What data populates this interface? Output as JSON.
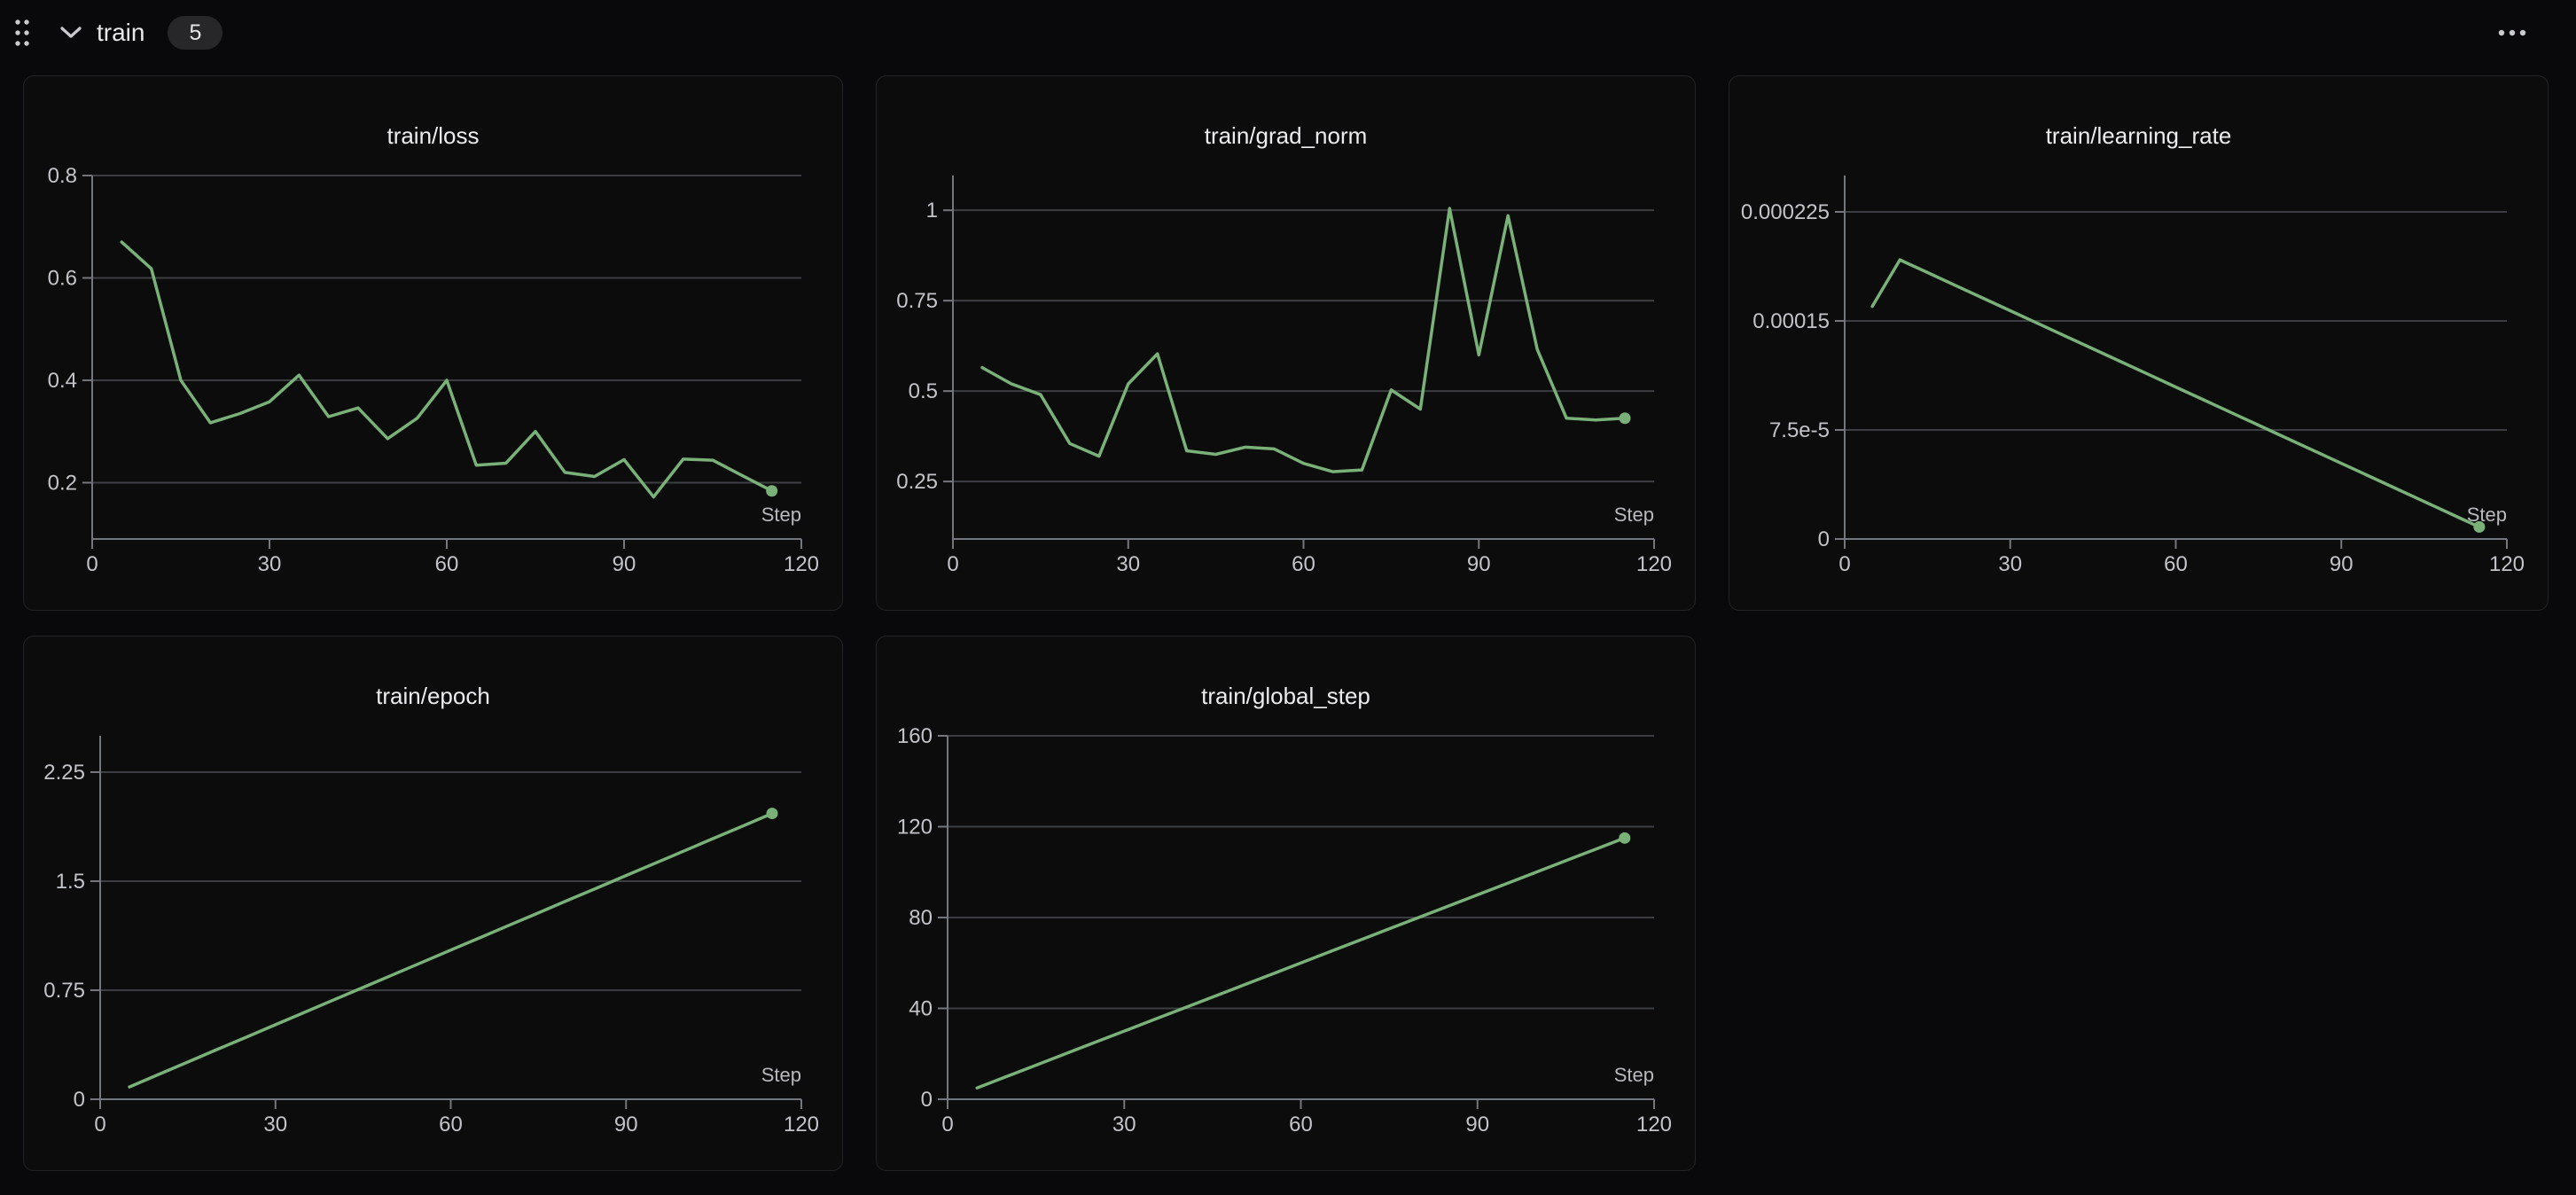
{
  "header": {
    "grip_icon": "drag-handle",
    "collapse_icon": "chevron-down",
    "title": "train",
    "panel_count": "5",
    "menu_icon": "ellipsis"
  },
  "colors": {
    "page_bg": "#09090b",
    "panel_bg": "#0c0c0d",
    "panel_border": "#232327",
    "grid": "#3c3e41",
    "axis": "#73767b",
    "tick_label": "#c2c4c8",
    "title": "#ececee",
    "step_label": "#b7b9bd",
    "accent_line": "#79b179",
    "icon": "#c9cacd",
    "header_text": "#e8e8ea",
    "badge_bg": "#27272a",
    "badge_text": "#e6e6e8"
  },
  "chart_data": [
    {
      "type": "line",
      "title": "train/loss",
      "xlabel": "Step",
      "xlim": [
        0,
        120
      ],
      "xticks": [
        {
          "v": 0,
          "label": "0"
        },
        {
          "v": 30,
          "label": "30"
        },
        {
          "v": 60,
          "label": "60"
        },
        {
          "v": 90,
          "label": "90"
        },
        {
          "v": 120,
          "label": "120"
        }
      ],
      "ylim": [
        0.09,
        0.8
      ],
      "yticks": [
        {
          "v": 0.8,
          "label": "0.8"
        },
        {
          "v": 0.6,
          "label": "0.6"
        },
        {
          "v": 0.4,
          "label": "0.4"
        },
        {
          "v": 0.2,
          "label": "0.2"
        }
      ],
      "x": [
        5,
        10,
        15,
        20,
        25,
        30,
        35,
        40,
        45,
        50,
        55,
        60,
        65,
        70,
        75,
        80,
        85,
        90,
        95,
        100,
        105,
        110,
        115
      ],
      "y": [
        0.67,
        0.618,
        0.4,
        0.317,
        0.335,
        0.358,
        0.41,
        0.329,
        0.346,
        0.286,
        0.326,
        0.4,
        0.234,
        0.238,
        0.3,
        0.22,
        0.212,
        0.245,
        0.172,
        0.246,
        0.244,
        0.214,
        0.184
      ],
      "grid": true,
      "legend": "none",
      "end_marker": true
    },
    {
      "type": "line",
      "title": "train/grad_norm",
      "xlabel": "Step",
      "xlim": [
        0,
        120
      ],
      "xticks": [
        {
          "v": 0,
          "label": "0"
        },
        {
          "v": 30,
          "label": "30"
        },
        {
          "v": 60,
          "label": "60"
        },
        {
          "v": 90,
          "label": "90"
        },
        {
          "v": 120,
          "label": "120"
        }
      ],
      "ylim": [
        0.091,
        1.096
      ],
      "yticks": [
        {
          "v": 1,
          "label": "1"
        },
        {
          "v": 0.75,
          "label": "0.75"
        },
        {
          "v": 0.5,
          "label": "0.5"
        },
        {
          "v": 0.25,
          "label": "0.25"
        }
      ],
      "x": [
        5,
        10,
        15,
        20,
        25,
        30,
        35,
        40,
        45,
        50,
        55,
        60,
        65,
        70,
        75,
        80,
        85,
        90,
        95,
        100,
        105,
        110,
        115
      ],
      "y": [
        0.565,
        0.52,
        0.49,
        0.355,
        0.32,
        0.52,
        0.603,
        0.335,
        0.325,
        0.345,
        0.34,
        0.3,
        0.277,
        0.282,
        0.503,
        0.45,
        1.005,
        0.6,
        0.985,
        0.615,
        0.425,
        0.42,
        0.425
      ],
      "grid": true,
      "legend": "none",
      "end_marker": true
    },
    {
      "type": "line",
      "title": "train/learning_rate",
      "xlabel": "Step",
      "xlim": [
        0,
        120
      ],
      "xticks": [
        {
          "v": 0,
          "label": "0"
        },
        {
          "v": 30,
          "label": "30"
        },
        {
          "v": 60,
          "label": "60"
        },
        {
          "v": 90,
          "label": "90"
        },
        {
          "v": 120,
          "label": "120"
        }
      ],
      "ylim": [
        0,
        0.00025
      ],
      "yticks": [
        {
          "v": 0.000225,
          "label": "0.000225"
        },
        {
          "v": 0.00015,
          "label": "0.00015"
        },
        {
          "v": 7.5e-05,
          "label": "7.5e-5"
        },
        {
          "v": 0,
          "label": "0"
        }
      ],
      "x": [
        5,
        10,
        15,
        20,
        25,
        30,
        35,
        40,
        45,
        50,
        55,
        60,
        65,
        70,
        75,
        80,
        85,
        90,
        95,
        100,
        105,
        110,
        115
      ],
      "y": [
        0.00016,
        0.000192,
        0.0001833,
        0.0001745,
        0.0001658,
        0.000157,
        0.0001483,
        0.0001395,
        0.0001308,
        0.000122,
        0.0001133,
        0.0001045,
        9.58e-05,
        8.7e-05,
        7.83e-05,
        6.95e-05,
        6.08e-05,
        5.2e-05,
        4.33e-05,
        3.45e-05,
        2.58e-05,
        1.7e-05,
        8.3e-06
      ],
      "grid": true,
      "legend": "none",
      "end_marker": true
    },
    {
      "type": "line",
      "title": "train/epoch",
      "xlabel": "Step",
      "xlim": [
        0,
        120
      ],
      "xticks": [
        {
          "v": 0,
          "label": "0"
        },
        {
          "v": 30,
          "label": "30"
        },
        {
          "v": 60,
          "label": "60"
        },
        {
          "v": 90,
          "label": "90"
        },
        {
          "v": 120,
          "label": "120"
        }
      ],
      "ylim": [
        0,
        2.5
      ],
      "yticks": [
        {
          "v": 2.25,
          "label": "2.25"
        },
        {
          "v": 1.5,
          "label": "1.5"
        },
        {
          "v": 0.75,
          "label": "0.75"
        },
        {
          "v": 0,
          "label": "0"
        }
      ],
      "x": [
        5,
        10,
        15,
        20,
        25,
        30,
        35,
        40,
        45,
        50,
        55,
        60,
        65,
        70,
        75,
        80,
        85,
        90,
        95,
        100,
        105,
        110,
        115
      ],
      "y": [
        0.085,
        0.171,
        0.256,
        0.342,
        0.427,
        0.513,
        0.598,
        0.684,
        0.769,
        0.855,
        0.94,
        1.026,
        1.111,
        1.197,
        1.282,
        1.368,
        1.453,
        1.539,
        1.624,
        1.709,
        1.795,
        1.88,
        1.966
      ],
      "grid": true,
      "legend": "none",
      "end_marker": true
    },
    {
      "type": "line",
      "title": "train/global_step",
      "xlabel": "Step",
      "xlim": [
        0,
        120
      ],
      "xticks": [
        {
          "v": 0,
          "label": "0"
        },
        {
          "v": 30,
          "label": "30"
        },
        {
          "v": 60,
          "label": "60"
        },
        {
          "v": 90,
          "label": "90"
        },
        {
          "v": 120,
          "label": "120"
        }
      ],
      "ylim": [
        0,
        160
      ],
      "yticks": [
        {
          "v": 160,
          "label": "160"
        },
        {
          "v": 120,
          "label": "120"
        },
        {
          "v": 80,
          "label": "80"
        },
        {
          "v": 40,
          "label": "40"
        },
        {
          "v": 0,
          "label": "0"
        }
      ],
      "x": [
        5,
        10,
        15,
        20,
        25,
        30,
        35,
        40,
        45,
        50,
        55,
        60,
        65,
        70,
        75,
        80,
        85,
        90,
        95,
        100,
        105,
        110,
        115
      ],
      "y": [
        5,
        10,
        15,
        20,
        25,
        30,
        35,
        40,
        45,
        50,
        55,
        60,
        65,
        70,
        75,
        80,
        85,
        90,
        95,
        100,
        105,
        110,
        115
      ],
      "grid": true,
      "legend": "none",
      "end_marker": true
    }
  ]
}
